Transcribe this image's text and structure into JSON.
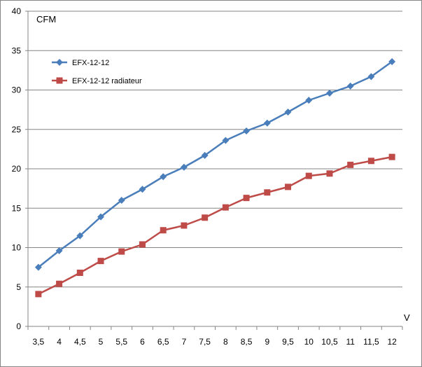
{
  "chart_data": {
    "type": "line",
    "ylabel": "CFM",
    "xlabel": "V",
    "ylim": [
      0,
      40
    ],
    "yticks": [
      0,
      5,
      10,
      15,
      20,
      25,
      30,
      35,
      40
    ],
    "grid": "horizontal",
    "legend_position": "top-left",
    "categories": [
      "3,5",
      "4",
      "4,5",
      "5",
      "5,5",
      "6",
      "6,5",
      "7",
      "7,5",
      "8",
      "8,5",
      "9",
      "9,5",
      "10",
      "10,5",
      "11",
      "11,5",
      "12"
    ],
    "series": [
      {
        "name": "EFX-12-12",
        "color": "#4a7ebb",
        "marker": "diamond",
        "values": [
          7.5,
          9.6,
          11.5,
          13.9,
          16.0,
          17.4,
          19.0,
          20.2,
          21.7,
          23.6,
          24.8,
          25.8,
          27.2,
          28.7,
          29.6,
          30.5,
          31.7,
          33.6
        ]
      },
      {
        "name": "EFX-12-12 radiateur",
        "color": "#be4b48",
        "marker": "square",
        "values": [
          4.1,
          5.4,
          6.8,
          8.3,
          9.5,
          10.4,
          12.2,
          12.8,
          13.8,
          15.1,
          16.3,
          17.0,
          17.7,
          19.1,
          19.4,
          20.5,
          21.0,
          21.5
        ]
      }
    ]
  }
}
